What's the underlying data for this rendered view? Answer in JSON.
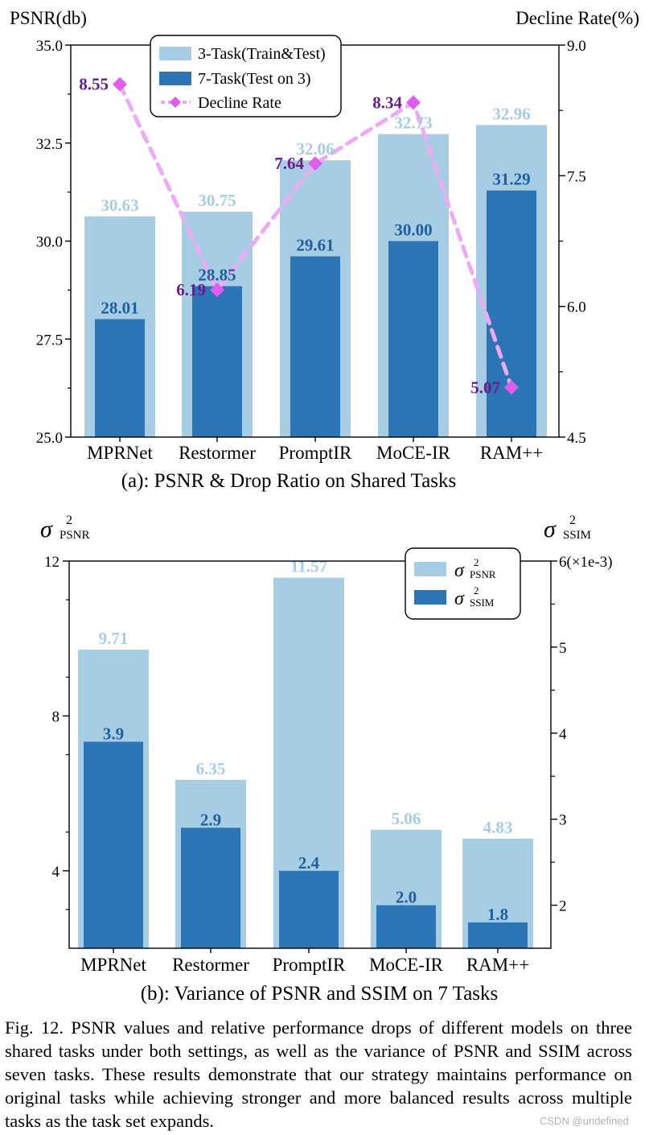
{
  "chart_data": [
    {
      "id": "a",
      "type": "bar",
      "categories": [
        "MPRNet",
        "Restormer",
        "PromptIR",
        "MoCE-IR",
        "RAM++"
      ],
      "left_axis_label": "PSNR(db)",
      "right_axis_label": "Decline Rate(%)",
      "left_ticks": [
        "25.0",
        "27.5",
        "30.0",
        "32.5",
        "35.0"
      ],
      "right_ticks": [
        "4.5",
        "6.0",
        "7.5",
        "9.0"
      ],
      "ylim_left": [
        25.0,
        35.0
      ],
      "ylim_right": [
        4.5,
        9.0
      ],
      "series": [
        {
          "name": "3-Task(Train&Test)",
          "axis": "left",
          "kind": "bar",
          "color": "#a7cde4",
          "values": [
            30.63,
            30.75,
            32.06,
            32.73,
            32.96
          ],
          "labels": [
            "30.63",
            "30.75",
            "32.06",
            "32.73",
            "32.96"
          ]
        },
        {
          "name": "7-Task(Test on 3)",
          "axis": "left",
          "kind": "bar",
          "color": "#2b75b6",
          "values": [
            28.01,
            28.85,
            29.61,
            30.0,
            31.29
          ],
          "labels": [
            "28.01",
            "28.85",
            "29.61",
            "30.00",
            "31.29"
          ]
        },
        {
          "name": "Decline Rate",
          "axis": "right",
          "kind": "line",
          "color": "#e05cf0",
          "values": [
            8.55,
            6.19,
            7.64,
            8.34,
            5.07
          ],
          "labels": [
            "8.55",
            "6.19",
            "7.64",
            "8.34",
            "5.07"
          ]
        }
      ],
      "legend_position": "top-center",
      "subtitle": "(a): PSNR & Drop Ratio on Shared Tasks"
    },
    {
      "id": "b",
      "type": "bar",
      "categories": [
        "MPRNet",
        "Restormer",
        "PromptIR",
        "MoCE-IR",
        "RAM++"
      ],
      "left_axis_label": {
        "symbol": "σ",
        "sub": "PSNR",
        "sup": "2"
      },
      "right_axis_label": {
        "symbol": "σ",
        "sub": "SSIM",
        "sup": "2"
      },
      "left_ticks": [
        "4",
        "8",
        "12"
      ],
      "right_ticks": [
        "2",
        "3",
        "4",
        "5",
        "6(×1e-3)"
      ],
      "ylim_left": [
        2,
        12
      ],
      "ylim_right": [
        1.5,
        6.0
      ],
      "series": [
        {
          "name": {
            "symbol": "σ",
            "sub": "PSNR",
            "sup": "2"
          },
          "axis": "left",
          "kind": "bar",
          "color": "#a7cde4",
          "values": [
            9.71,
            6.35,
            11.57,
            5.06,
            4.83
          ],
          "labels": [
            "9.71",
            "6.35",
            "11.57",
            "5.06",
            "4.83"
          ]
        },
        {
          "name": {
            "symbol": "σ",
            "sub": "SSIM",
            "sup": "2"
          },
          "axis": "right",
          "kind": "bar",
          "color": "#2b75b6",
          "values": [
            3.9,
            2.9,
            2.4,
            2.0,
            1.8
          ],
          "labels": [
            "3.9",
            "2.9",
            "2.4",
            "2.0",
            "1.8"
          ]
        }
      ],
      "legend_position": "top-right",
      "subtitle": "(b): Variance of PSNR and SSIM on 7 Tasks"
    }
  ],
  "caption": "Fig. 12.  PSNR values and relative performance drops of different models on three shared tasks under both settings, as well as the variance of PSNR and SSIM across seven tasks. These results demonstrate that our strategy maintains performance on original tasks while achieving stronger and more balanced results across multiple tasks as the task set expands.",
  "watermark": "CSDN @undefined"
}
